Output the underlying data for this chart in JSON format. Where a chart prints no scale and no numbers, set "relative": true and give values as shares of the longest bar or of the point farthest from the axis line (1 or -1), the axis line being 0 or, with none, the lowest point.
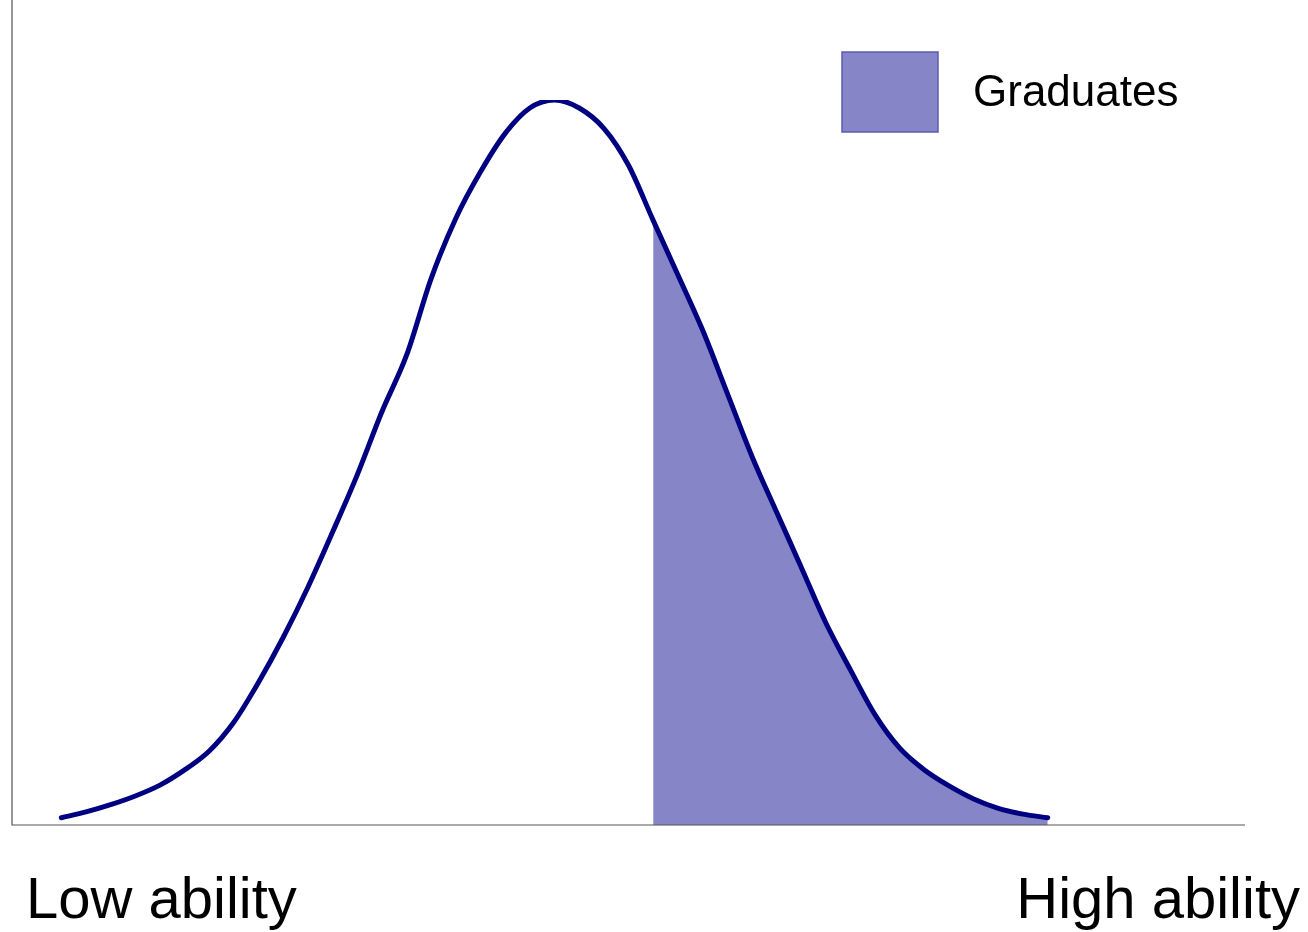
{
  "chart_data": {
    "type": "line",
    "relative": true,
    "legend": "top right",
    "marker": "none",
    "categories": [
      null,
      null,
      null,
      null,
      null,
      null,
      null,
      null,
      null,
      null,
      null,
      null,
      null,
      null,
      null,
      null,
      null,
      null,
      null,
      null,
      null,
      null,
      null,
      null,
      null,
      null,
      null,
      null,
      null,
      null,
      null,
      null,
      null,
      null,
      null,
      null,
      null,
      null,
      null,
      null,
      null,
      null,
      null,
      null,
      null,
      null,
      null,
      null,
      null,
      null,
      null
    ],
    "series": [
      {
        "color": "#000080",
        "values": [
          null,
          null,
          0.01,
          0.018,
          0.028,
          0.04,
          0.055,
          0.076,
          0.102,
          0.142,
          0.197,
          0.259,
          0.328,
          0.404,
          0.483,
          0.57,
          0.648,
          0.754,
          0.837,
          0.901,
          0.954,
          0.989,
          1,
          0.989,
          0.961,
          0.91,
          0.834,
          0.759,
          0.683,
          0.596,
          0.509,
          0.432,
          0.356,
          0.279,
          0.214,
          0.152,
          0.106,
          0.076,
          0.054,
          0.036,
          0.023,
          0.015,
          0.01,
          null,
          null,
          null,
          null,
          null,
          null,
          null,
          null
        ]
      },
      {
        "type": "area",
        "name": "Graduates",
        "color": "#5c5cb4",
        "values": [
          null,
          null,
          null,
          null,
          null,
          null,
          null,
          null,
          null,
          null,
          null,
          null,
          null,
          null,
          null,
          null,
          null,
          null,
          null,
          null,
          null,
          null,
          null,
          null,
          null,
          null,
          0.834,
          0.759,
          0.683,
          0.596,
          0.509,
          0.432,
          0.356,
          0.279,
          0.214,
          0.152,
          0.106,
          0.076,
          0.054,
          0.036,
          0.023,
          0.015,
          0.01,
          null,
          null,
          null,
          null,
          null,
          null,
          null,
          null
        ]
      }
    ],
    "annotations": [
      "Low ability",
      "High ability"
    ]
  }
}
